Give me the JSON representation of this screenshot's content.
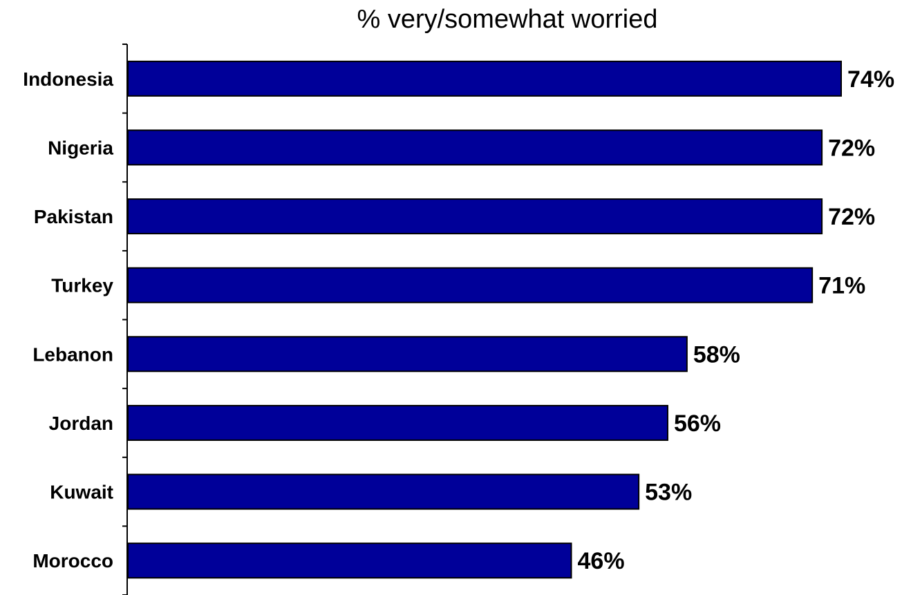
{
  "chart_data": {
    "type": "bar",
    "orientation": "horizontal",
    "title": "% very/somewhat worried",
    "categories": [
      "Indonesia",
      "Nigeria",
      "Pakistan",
      "Turkey",
      "Lebanon",
      "Jordan",
      "Kuwait",
      "Morocco"
    ],
    "values": [
      74,
      72,
      72,
      71,
      58,
      56,
      53,
      46
    ],
    "value_labels": [
      "74%",
      "72%",
      "72%",
      "71%",
      "58%",
      "56%",
      "53%",
      "46%"
    ],
    "value_suffix": "%",
    "xlabel": "",
    "ylabel": "",
    "xlim": [
      0,
      74
    ],
    "grid": false,
    "legend": "none",
    "colors": {
      "bar": "#000099",
      "bar_outline": "#000000"
    }
  }
}
